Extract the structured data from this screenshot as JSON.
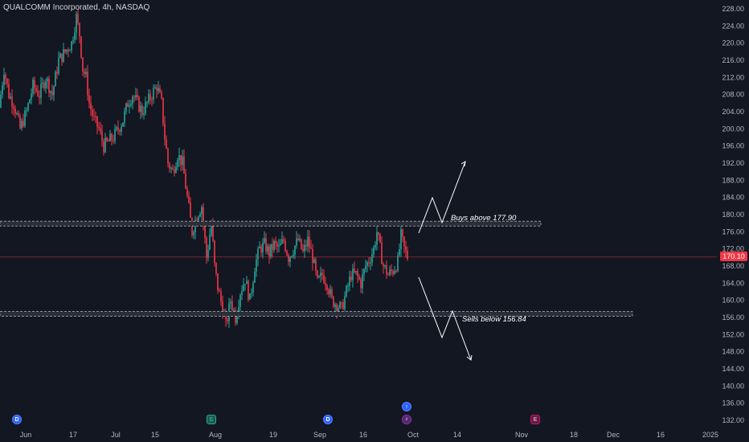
{
  "header": {
    "title": "QUALCOMM Incorporated, 4h, NASDAQ"
  },
  "price_tag": {
    "value": "170.10",
    "color": "#f23645"
  },
  "annotations": {
    "buy_label": "Buys above 177.90",
    "sell_label": "Sells below 156.84"
  },
  "events": [
    {
      "name": "dividend-event-jun",
      "glyph": "D",
      "kind": "dividend"
    },
    {
      "name": "earnings-event-jul",
      "glyph": "E",
      "kind": "earnings"
    },
    {
      "name": "dividend-event-sep",
      "glyph": "D",
      "kind": "dividend"
    },
    {
      "name": "split-event-sep",
      "glyph": "⚡",
      "kind": "split"
    },
    {
      "name": "upgrade-event-sep",
      "glyph": "↑",
      "kind": "news"
    },
    {
      "name": "earnings-event-oct",
      "glyph": "E",
      "kind": "earnings"
    }
  ],
  "chart_data": {
    "type": "candlestick",
    "colors": {
      "up": "#26a69a",
      "down": "#f23645",
      "background": "#131722"
    },
    "y_ticks": [
      "228.00",
      "224.00",
      "220.00",
      "216.00",
      "212.00",
      "208.00",
      "204.00",
      "200.00",
      "196.00",
      "192.00",
      "188.00",
      "184.00",
      "180.00",
      "176.00",
      "172.00",
      "168.00",
      "164.00",
      "160.00",
      "156.00",
      "152.00",
      "148.00",
      "144.00",
      "140.00",
      "136.00",
      "132.00"
    ],
    "x_ticks": [
      "Jun",
      "17",
      "Jul",
      "15",
      "Aug",
      "19",
      "Sep",
      "16",
      "Oct",
      "14",
      "Nov",
      "18",
      "Dec",
      "16",
      "2025"
    ],
    "ylim": [
      132,
      228
    ],
    "levels": [
      {
        "name": "resistance",
        "value": 177.9
      },
      {
        "name": "support",
        "value": 156.84
      },
      {
        "name": "last-price",
        "value": 170.1
      }
    ],
    "path_segment": [
      {
        "x": 0,
        "close": 205
      },
      {
        "x": 6,
        "close": 214
      },
      {
        "x": 12,
        "close": 208
      },
      {
        "x": 18,
        "close": 206
      },
      {
        "x": 26,
        "close": 200
      },
      {
        "x": 34,
        "close": 204
      },
      {
        "x": 42,
        "close": 210
      },
      {
        "x": 50,
        "close": 208
      },
      {
        "x": 58,
        "close": 212
      },
      {
        "x": 66,
        "close": 208
      },
      {
        "x": 74,
        "close": 216
      },
      {
        "x": 82,
        "close": 218
      },
      {
        "x": 90,
        "close": 220
      },
      {
        "x": 96,
        "close": 226
      },
      {
        "x": 100,
        "close": 222
      },
      {
        "x": 104,
        "close": 214
      },
      {
        "x": 108,
        "close": 212
      },
      {
        "x": 112,
        "close": 206
      },
      {
        "x": 118,
        "close": 202
      },
      {
        "x": 124,
        "close": 200
      },
      {
        "x": 130,
        "close": 196
      },
      {
        "x": 136,
        "close": 197
      },
      {
        "x": 142,
        "close": 198
      },
      {
        "x": 148,
        "close": 200
      },
      {
        "x": 154,
        "close": 202
      },
      {
        "x": 160,
        "close": 206
      },
      {
        "x": 166,
        "close": 208
      },
      {
        "x": 172,
        "close": 206
      },
      {
        "x": 178,
        "close": 204
      },
      {
        "x": 184,
        "close": 206
      },
      {
        "x": 190,
        "close": 208
      },
      {
        "x": 196,
        "close": 210
      },
      {
        "x": 202,
        "close": 206
      },
      {
        "x": 206,
        "close": 198
      },
      {
        "x": 210,
        "close": 192
      },
      {
        "x": 216,
        "close": 190
      },
      {
        "x": 222,
        "close": 194
      },
      {
        "x": 228,
        "close": 192
      },
      {
        "x": 234,
        "close": 184
      },
      {
        "x": 240,
        "close": 176
      },
      {
        "x": 246,
        "close": 180
      },
      {
        "x": 252,
        "close": 182
      },
      {
        "x": 258,
        "close": 170
      },
      {
        "x": 264,
        "close": 178
      },
      {
        "x": 268,
        "close": 168
      },
      {
        "x": 272,
        "close": 163
      },
      {
        "x": 278,
        "close": 158
      },
      {
        "x": 282,
        "close": 154
      },
      {
        "x": 288,
        "close": 160
      },
      {
        "x": 294,
        "close": 156
      },
      {
        "x": 300,
        "close": 162
      },
      {
        "x": 306,
        "close": 165
      },
      {
        "x": 312,
        "close": 160
      },
      {
        "x": 318,
        "close": 168
      },
      {
        "x": 324,
        "close": 172
      },
      {
        "x": 330,
        "close": 173
      },
      {
        "x": 336,
        "close": 171
      },
      {
        "x": 342,
        "close": 173
      },
      {
        "x": 348,
        "close": 172
      },
      {
        "x": 354,
        "close": 174
      },
      {
        "x": 360,
        "close": 170
      },
      {
        "x": 366,
        "close": 172
      },
      {
        "x": 372,
        "close": 174
      },
      {
        "x": 378,
        "close": 171
      },
      {
        "x": 384,
        "close": 174
      },
      {
        "x": 390,
        "close": 170
      },
      {
        "x": 396,
        "close": 164
      },
      {
        "x": 402,
        "close": 166
      },
      {
        "x": 408,
        "close": 164
      },
      {
        "x": 414,
        "close": 160
      },
      {
        "x": 420,
        "close": 159
      },
      {
        "x": 426,
        "close": 158
      },
      {
        "x": 432,
        "close": 162
      },
      {
        "x": 438,
        "close": 166
      },
      {
        "x": 444,
        "close": 166
      },
      {
        "x": 450,
        "close": 164
      },
      {
        "x": 456,
        "close": 168
      },
      {
        "x": 462,
        "close": 170
      },
      {
        "x": 466,
        "close": 172
      },
      {
        "x": 470,
        "close": 176
      },
      {
        "x": 474,
        "close": 172
      },
      {
        "x": 478,
        "close": 168
      },
      {
        "x": 484,
        "close": 166
      },
      {
        "x": 490,
        "close": 167
      },
      {
        "x": 496,
        "close": 169
      },
      {
        "x": 500,
        "close": 175
      },
      {
        "x": 504,
        "close": 172
      },
      {
        "x": 508,
        "close": 170.1
      }
    ]
  }
}
